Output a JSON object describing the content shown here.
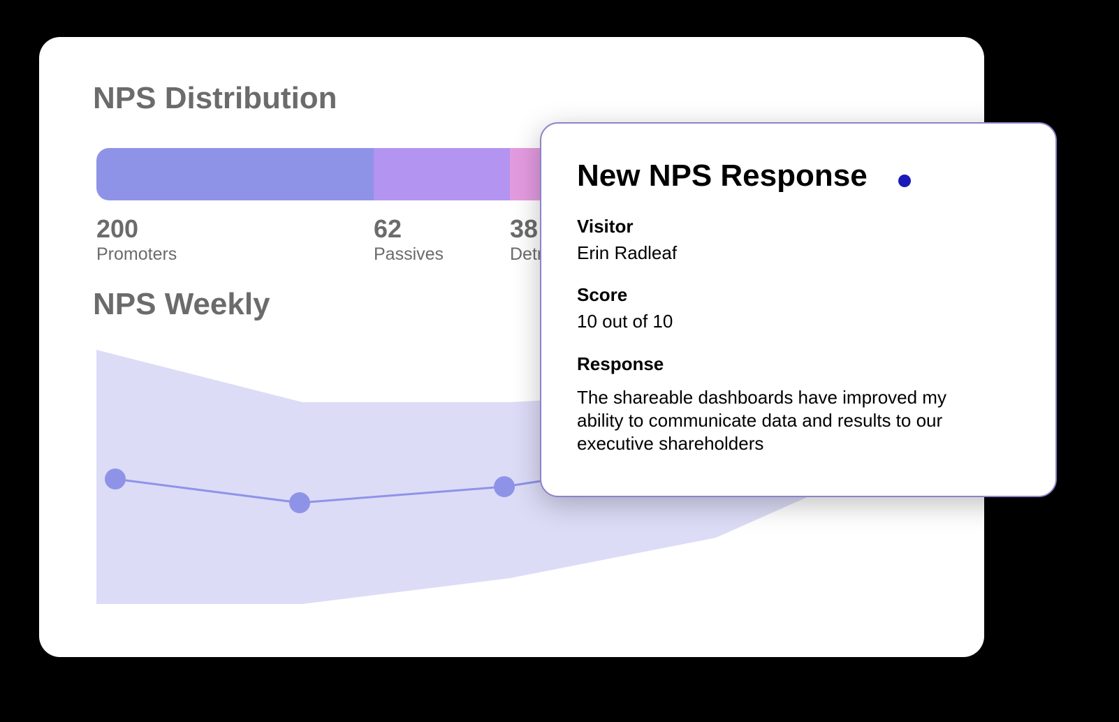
{
  "distribution": {
    "title": "NPS Distribution",
    "segments": [
      {
        "value": "200",
        "label": "Promoters"
      },
      {
        "value": "62",
        "label": "Passives"
      },
      {
        "value": "38",
        "label": "Detractors"
      }
    ]
  },
  "weekly": {
    "title": "NPS Weekly"
  },
  "popup": {
    "title": "New NPS Response",
    "fields": [
      {
        "label": "Visitor",
        "text": "Erin Radleaf"
      },
      {
        "label": "Score",
        "text": "10 out of 10"
      },
      {
        "label": "Response",
        "text": "The shareable dashboards have improved my ability to communicate data and results to our executive shareholders"
      }
    ]
  }
}
